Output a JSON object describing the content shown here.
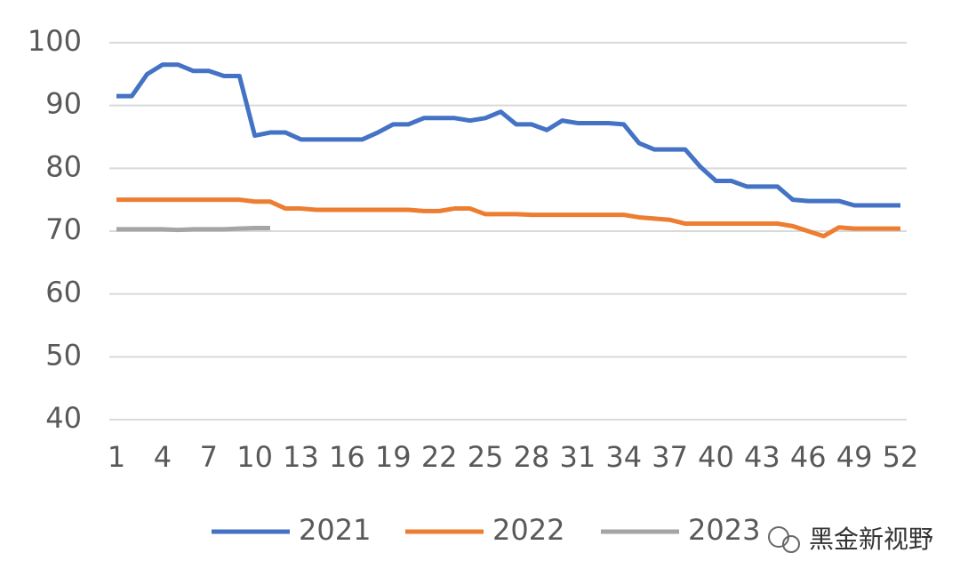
{
  "chart_data": {
    "type": "line",
    "x": [
      1,
      2,
      3,
      4,
      5,
      6,
      7,
      8,
      9,
      10,
      11,
      12,
      13,
      14,
      15,
      16,
      17,
      18,
      19,
      20,
      21,
      22,
      23,
      24,
      25,
      26,
      27,
      28,
      29,
      30,
      31,
      32,
      33,
      34,
      35,
      36,
      37,
      38,
      39,
      40,
      41,
      42,
      43,
      44,
      45,
      46,
      47,
      48,
      49,
      50,
      51,
      52
    ],
    "xlim": [
      1,
      52
    ],
    "xticks": [
      1,
      4,
      7,
      10,
      13,
      16,
      19,
      22,
      25,
      28,
      31,
      34,
      37,
      40,
      43,
      46,
      49,
      52
    ],
    "ylim": [
      40,
      100
    ],
    "yticks": [
      40,
      50,
      60,
      70,
      80,
      90,
      100
    ],
    "grid": true,
    "legend": "bottom",
    "series": [
      {
        "name": "2021",
        "color": "#4472c4",
        "values": [
          91.5,
          91.5,
          95,
          96.5,
          96.5,
          95.5,
          95.5,
          94.7,
          94.7,
          85.2,
          85.7,
          85.7,
          84.6,
          84.6,
          84.6,
          84.6,
          84.6,
          85.7,
          87,
          87,
          88,
          88,
          88,
          87.6,
          88,
          89,
          87,
          87,
          86.1,
          87.6,
          87.2,
          87.2,
          87.2,
          87,
          84,
          83,
          83,
          83,
          80.2,
          78,
          78,
          77.1,
          77.1,
          77.1,
          75,
          74.8,
          74.8,
          74.8,
          74.1,
          74.1,
          74.1,
          74.1
        ]
      },
      {
        "name": "2022",
        "color": "#ed7d31",
        "values": [
          75,
          75,
          75,
          75,
          75,
          75,
          75,
          75,
          75,
          74.7,
          74.7,
          73.6,
          73.6,
          73.4,
          73.4,
          73.4,
          73.4,
          73.4,
          73.4,
          73.4,
          73.2,
          73.2,
          73.6,
          73.6,
          72.7,
          72.7,
          72.7,
          72.6,
          72.6,
          72.6,
          72.6,
          72.6,
          72.6,
          72.6,
          72.2,
          72,
          71.8,
          71.2,
          71.2,
          71.2,
          71.2,
          71.2,
          71.2,
          71.2,
          70.8,
          70,
          69.2,
          70.6,
          70.4,
          70.4,
          70.4,
          70.4
        ]
      },
      {
        "name": "2023",
        "color": "#a5a5a5",
        "values": [
          70.3,
          70.3,
          70.3,
          70.3,
          70.2,
          70.3,
          70.3,
          70.3,
          70.4,
          70.5,
          70.5,
          null,
          null,
          null,
          null,
          null,
          null,
          null,
          null,
          null,
          null,
          null,
          null,
          null,
          null,
          null,
          null,
          null,
          null,
          null,
          null,
          null,
          null,
          null,
          null,
          null,
          null,
          null,
          null,
          null,
          null,
          null,
          null,
          null,
          null,
          null,
          null,
          null,
          null,
          null,
          null,
          null
        ]
      }
    ]
  },
  "watermark": "黑金新视野"
}
